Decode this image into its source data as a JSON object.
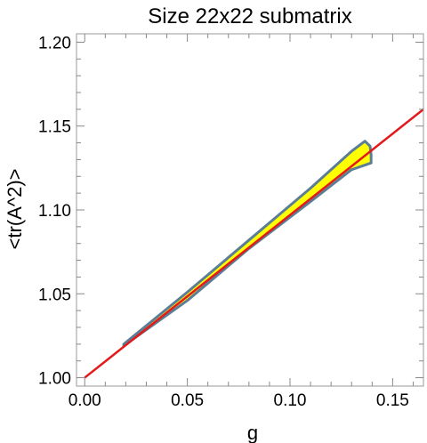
{
  "chart_data": {
    "type": "line",
    "title": "Size 22x22 submatrix",
    "xlabel": "g",
    "ylabel": "<tr(A^2)>",
    "xlim": [
      -0.004,
      0.165
    ],
    "ylim": [
      0.995,
      1.205
    ],
    "x_ticks": {
      "values": [
        0.0,
        0.05,
        0.1,
        0.15
      ],
      "labels": [
        "0.00",
        "0.05",
        "0.10",
        "0.15"
      ]
    },
    "y_ticks": {
      "values": [
        1.0,
        1.05,
        1.1,
        1.15,
        1.2
      ],
      "labels": [
        "1.00",
        "1.05",
        "1.10",
        "1.15",
        "1.20"
      ]
    },
    "grid": false,
    "frame": true,
    "series": [
      {
        "type": "line",
        "color": "#e31a1c",
        "x": [
          0.0,
          0.165
        ],
        "y": [
          1.0,
          1.16
        ]
      },
      {
        "type": "area",
        "fill": "#ffff00",
        "stroke": "#5b7e96",
        "x": [
          0.019,
          0.05,
          0.08,
          0.11,
          0.13,
          0.1365,
          0.139,
          0.1395,
          0.1395,
          0.13,
          0.11,
          0.08,
          0.05,
          0.019
        ],
        "y": [
          1.02,
          1.051,
          1.082,
          1.113,
          1.135,
          1.141,
          1.138,
          1.133,
          1.128,
          1.124,
          1.105,
          1.077,
          1.046,
          1.019
        ]
      }
    ]
  }
}
